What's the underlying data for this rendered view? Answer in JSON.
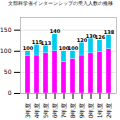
{
  "chart_data": {
    "type": "bar",
    "stacked": true,
    "title": "文部科学省インターンシップの受入人数の推移",
    "categories": [
      "13年度",
      "14年度",
      "15年度",
      "16年度",
      "17年度",
      "18年度",
      "19年度",
      "20年度",
      "21年度",
      "22年度"
    ],
    "series": [
      {
        "color": "#FF00FF",
        "values": [
          88,
          90,
          95,
          100,
          75,
          82,
          90,
          95,
          98,
          105
        ]
      },
      {
        "color": "#00CCEE",
        "values": [
          12,
          25,
          18,
          40,
          25,
          18,
          30,
          35,
          28,
          33
        ]
      }
    ],
    "totals": [
      100,
      115,
      113,
      140,
      100,
      100,
      120,
      130,
      126,
      138
    ],
    "ylim": [
      0,
      180
    ],
    "yticks": [
      0,
      50,
      100,
      150
    ],
    "grid": true
  }
}
